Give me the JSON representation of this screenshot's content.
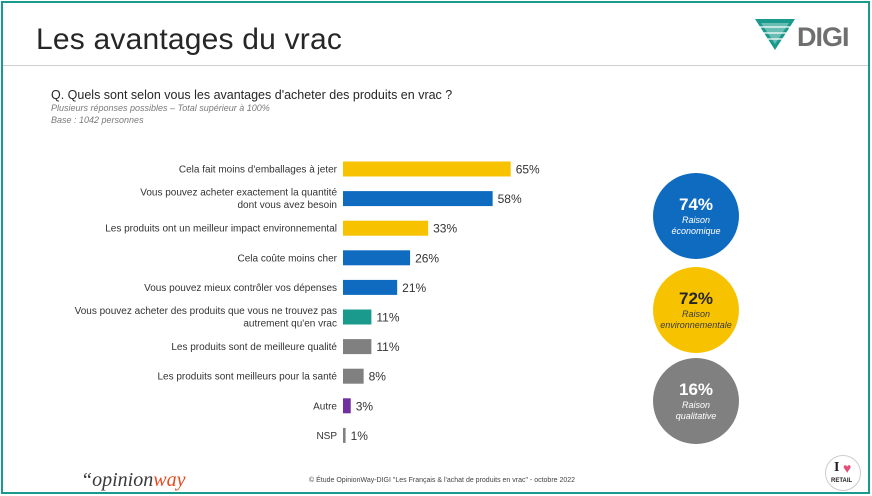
{
  "header": {
    "title": "Les avantages du vrac",
    "logo_text": "DIGI",
    "logo_icon": "digi-v-icon"
  },
  "question": "Q. Quels sont selon vous les avantages d'acheter des produits en vrac ?",
  "notes": [
    "Plusieurs réponses possibles – Total supérieur à 100%",
    "Base : 1042 personnes"
  ],
  "colors": {
    "economic": "#0f6bbf",
    "environmental": "#f7c300",
    "qualitative": "#808080",
    "teal": "#1a9a8c",
    "purple": "#7030a0"
  },
  "chart_data": {
    "type": "bar",
    "orientation": "horizontal",
    "categories": [
      [
        "Cela fait moins d'emballages à jeter"
      ],
      [
        "Vous pouvez acheter exactement la quantité",
        "dont vous avez besoin"
      ],
      [
        "Les produits ont un meilleur impact environnemental"
      ],
      [
        "Cela coûte moins cher"
      ],
      [
        "Vous pouvez mieux contrôler vos dépenses"
      ],
      [
        "Vous pouvez acheter des produits que vous ne trouvez pas",
        "autrement qu'en vrac"
      ],
      [
        "Les produits sont de meilleure qualité"
      ],
      [
        "Les produits sont meilleurs pour la santé"
      ],
      [
        "Autre"
      ],
      [
        "NSP"
      ]
    ],
    "values": [
      65,
      58,
      33,
      26,
      21,
      11,
      11,
      8,
      3,
      1
    ],
    "value_labels": [
      "65%",
      "58%",
      "33%",
      "26%",
      "21%",
      "11%",
      "11%",
      "8%",
      "3%",
      "1%"
    ],
    "bar_colors": [
      "#f7c300",
      "#0f6bbf",
      "#f7c300",
      "#0f6bbf",
      "#0f6bbf",
      "#1a9a8c",
      "#808080",
      "#808080",
      "#7030a0",
      "#808080"
    ],
    "xlim": [
      0,
      100
    ]
  },
  "summary": [
    {
      "pct": "74%",
      "label_lines": [
        "Raison",
        "économique"
      ]
    },
    {
      "pct": "72%",
      "label_lines": [
        "Raison",
        "environnementale"
      ]
    },
    {
      "pct": "16%",
      "label_lines": [
        "Raison",
        "qualitative"
      ]
    }
  ],
  "footer": {
    "brand_prefix": "“opinion",
    "brand_suffix": "way",
    "source": "© Étude OpinionWay-DIGI \"Les Français & l'achat de produits en vrac\" - octobre 2022",
    "badge_text": "RETAIL",
    "badge_letter": "I",
    "badge_heart": "♥"
  }
}
